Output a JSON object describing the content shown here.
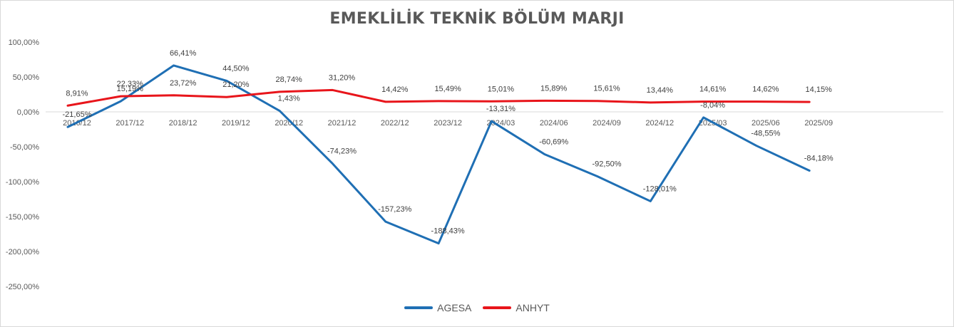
{
  "chart_data": {
    "type": "line",
    "title": "EMEKLİLİK TEKNİK BÖLÜM MARJI",
    "xlabel": "",
    "ylabel": "",
    "categories": [
      "2016/12",
      "2017/12",
      "2018/12",
      "2019/12",
      "2020/12",
      "2021/12",
      "2022/12",
      "2023/12",
      "2024/03",
      "2024/06",
      "2024/09",
      "2024/12",
      "2025/03",
      "2025/06",
      "2025/09"
    ],
    "ylim": [
      -250,
      100
    ],
    "yticks": [
      100,
      50,
      0,
      -50,
      -100,
      -150,
      -200,
      -250
    ],
    "ytick_labels": [
      "100,00%",
      "50,00%",
      "0,00%",
      "-50,00%",
      "-100,00%",
      "-150,00%",
      "-200,00%",
      "-250,00%"
    ],
    "grid": false,
    "legend_position": "bottom",
    "series": [
      {
        "name": "AGESA",
        "color": "#1f6fb4",
        "values": [
          -21.65,
          15.19,
          66.41,
          44.5,
          1.43,
          -74.23,
          -157.23,
          -188.43,
          -13.31,
          -60.69,
          -92.5,
          -128.01,
          -8.04,
          -48.55,
          -84.18
        ],
        "labels": [
          "-21,65%",
          "15,19%",
          "66,41%",
          "44,50%",
          "1,43%",
          "-74,23%",
          "-157,23%",
          "-188,43%",
          "-13,31%",
          "-60,69%",
          "-92,50%",
          "-128,01%",
          "-8,04%",
          "-48,55%",
          "-84,18%"
        ]
      },
      {
        "name": "ANHYT",
        "color": "#e8151b",
        "values": [
          8.91,
          22.33,
          23.72,
          21.2,
          28.74,
          31.2,
          14.42,
          15.49,
          15.01,
          15.89,
          15.61,
          13.44,
          14.61,
          14.62,
          14.15
        ],
        "labels": [
          "8,91%",
          "22,33%",
          "23,72%",
          "21,20%",
          "28,74%",
          "31,20%",
          "14,42%",
          "15,49%",
          "15,01%",
          "15,89%",
          "15,61%",
          "13,44%",
          "14,61%",
          "14,62%",
          "14,15%"
        ]
      }
    ]
  }
}
